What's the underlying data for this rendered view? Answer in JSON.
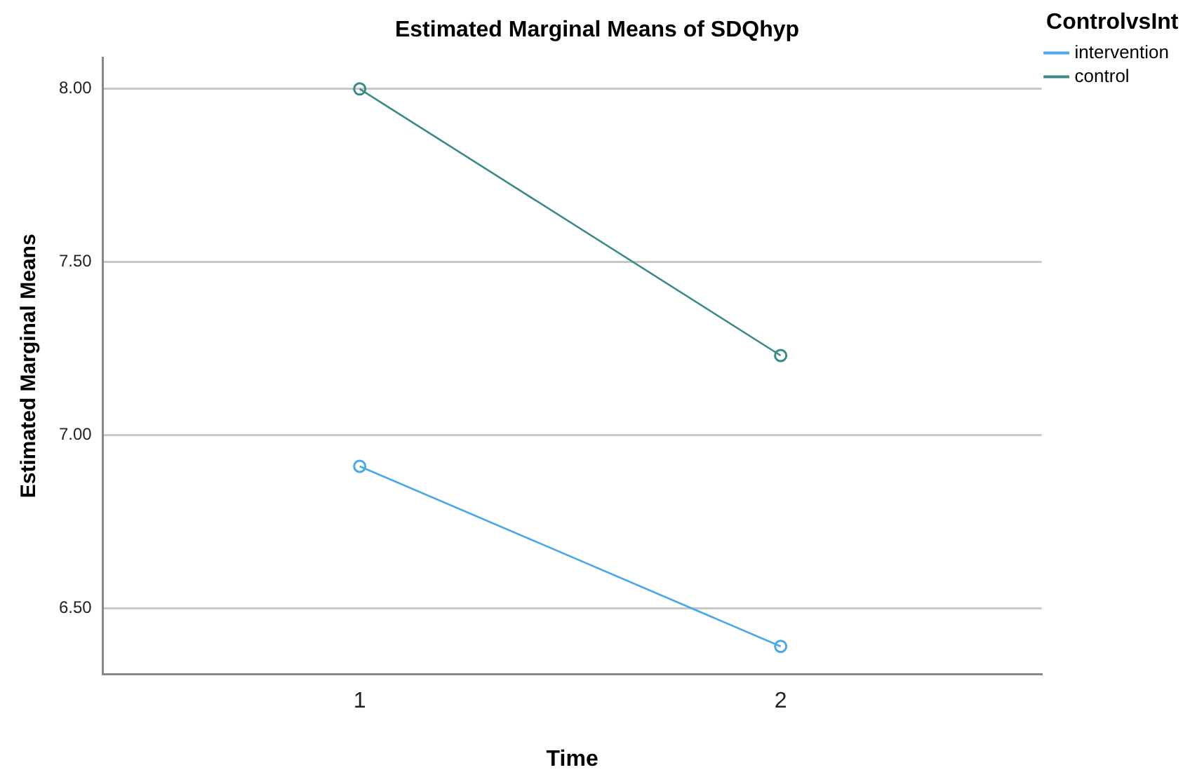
{
  "chart_data": {
    "type": "line",
    "title": "Estimated Marginal Means of SDQhyp",
    "xlabel": "Time",
    "ylabel": "Estimated Marginal Means",
    "legend_title": "ControlvsInt",
    "x": [
      1,
      2
    ],
    "xlim": [
      0.39,
      2.62
    ],
    "xticks": [
      1,
      2
    ],
    "series": [
      {
        "name": "intervention",
        "color": "#4aa8e8",
        "values": [
          6.91,
          6.39
        ]
      },
      {
        "name": "control",
        "color": "#3a8a88",
        "values": [
          8.0,
          7.23
        ]
      }
    ],
    "ylim": [
      6.31,
      8.09
    ],
    "yticks": [
      {
        "value": 6.5,
        "label": "6.50"
      },
      {
        "value": 7,
        "label": "7.00"
      },
      {
        "value": 7.5,
        "label": "7.50"
      },
      {
        "value": 8,
        "label": "8.00"
      }
    ],
    "grid": "y",
    "legend": "top right",
    "marker": "circle",
    "line_style": "solid"
  }
}
